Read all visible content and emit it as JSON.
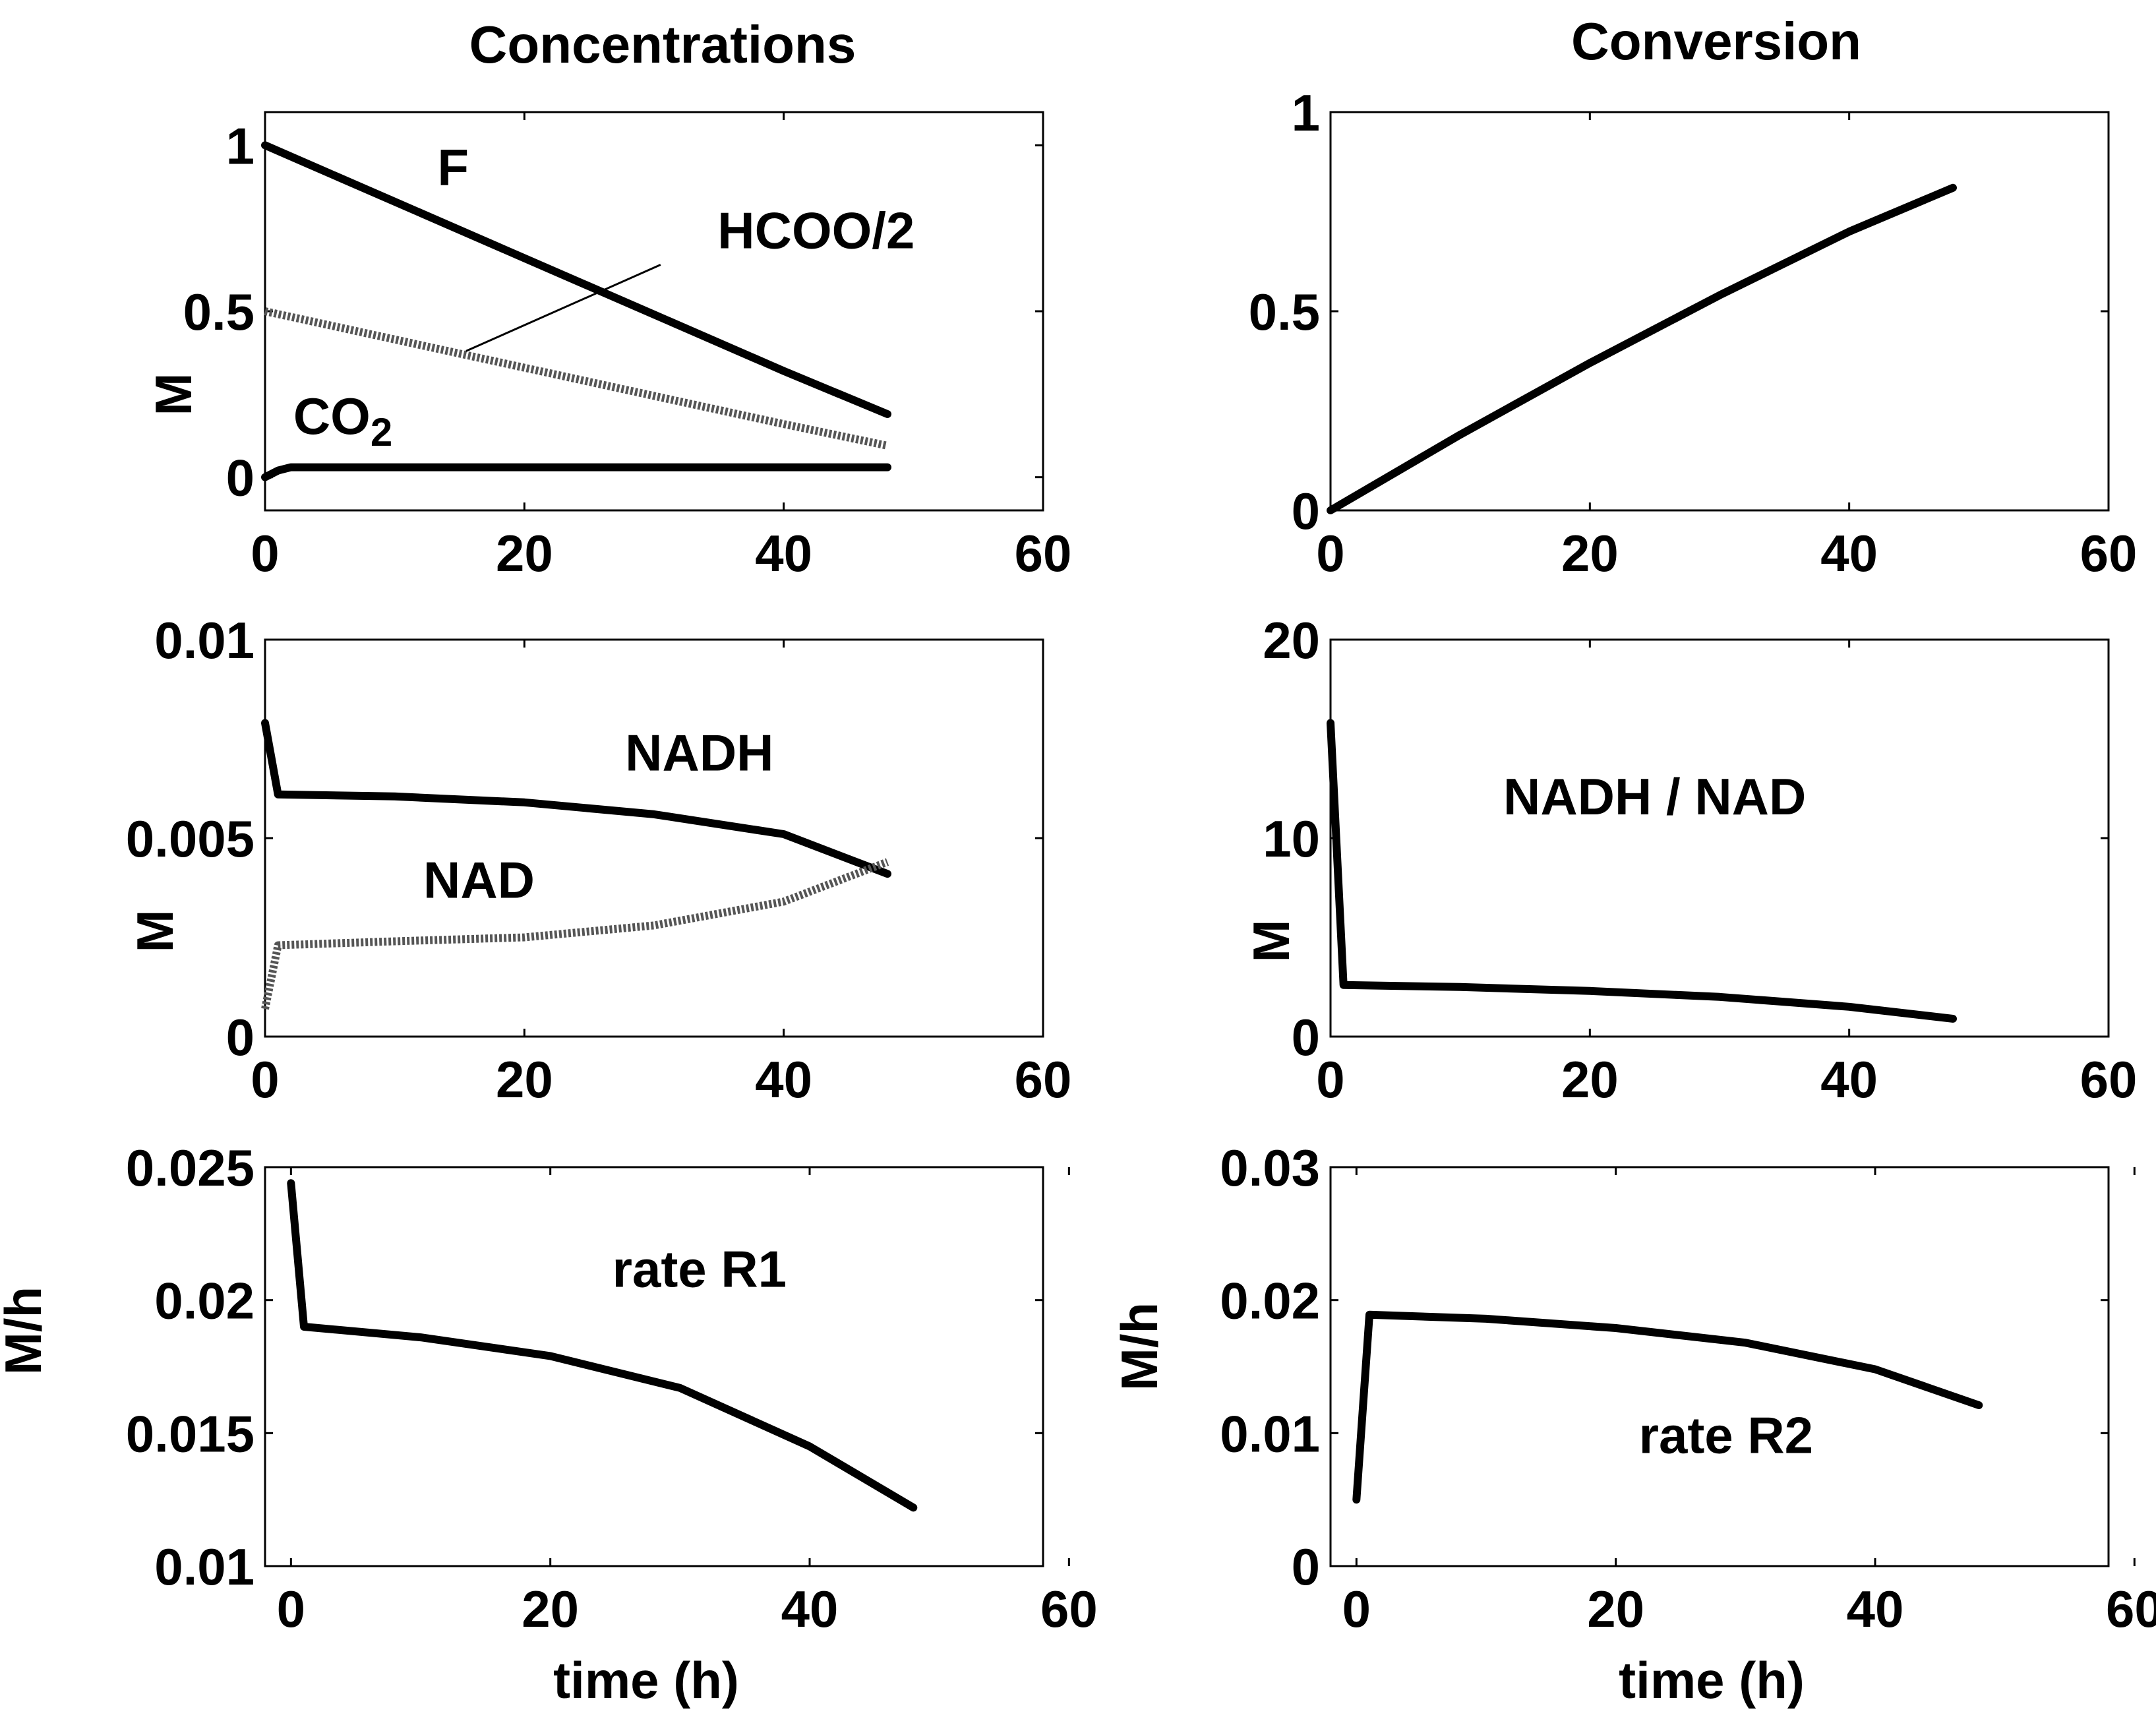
{
  "figure": {
    "col_titles": [
      "Concentrations",
      "Conversion"
    ],
    "xlabel": "time (h)"
  },
  "chart_data": [
    {
      "id": "p1",
      "type": "line",
      "title": "",
      "xlabel": "",
      "ylabel": "M",
      "xlim": [
        0,
        60
      ],
      "ylim": [
        -0.1,
        1.1
      ],
      "xticks": [
        0,
        20,
        40,
        60
      ],
      "yticks": [
        0,
        0.5,
        1
      ],
      "xtick_labels": [
        "0",
        "20",
        "40",
        "60"
      ],
      "ytick_labels": [
        "0",
        "0.5",
        "1"
      ],
      "series": [
        {
          "name": "F",
          "style": "solid",
          "x": [
            0,
            10,
            20,
            30,
            40,
            48
          ],
          "y": [
            1.0,
            0.83,
            0.66,
            0.49,
            0.32,
            0.19
          ]
        },
        {
          "name": "HCOO/2",
          "style": "dotted",
          "x": [
            0,
            10,
            20,
            30,
            40,
            48
          ],
          "y": [
            0.5,
            0.415,
            0.33,
            0.245,
            0.16,
            0.095
          ]
        },
        {
          "name": "CO2",
          "style": "solid",
          "x": [
            0,
            1,
            2,
            10,
            20,
            30,
            40,
            48
          ],
          "y": [
            0.0,
            0.02,
            0.03,
            0.03,
            0.03,
            0.03,
            0.03,
            0.03
          ]
        }
      ],
      "annotations": [
        {
          "text": "F",
          "x": 14.5,
          "y": 0.88
        },
        {
          "text": "HCOO/2",
          "x": 42.5,
          "y": 0.69
        },
        {
          "text": "CO",
          "sub": "2",
          "x": 6,
          "y": 0.13
        }
      ],
      "leader": {
        "x1": 15.5,
        "y1": 0.38,
        "x2": 30.5,
        "y2": 0.64
      }
    },
    {
      "id": "p2",
      "type": "line",
      "title": "",
      "xlabel": "",
      "ylabel": "",
      "xlim": [
        0,
        60
      ],
      "ylim": [
        0,
        1
      ],
      "xticks": [
        0,
        20,
        40,
        60
      ],
      "yticks": [
        0,
        0.5,
        1
      ],
      "xtick_labels": [
        "0",
        "20",
        "40",
        "60"
      ],
      "ytick_labels": [
        "0",
        "0.5",
        "1"
      ],
      "series": [
        {
          "name": "Conversion",
          "style": "solid",
          "x": [
            0,
            10,
            20,
            30,
            40,
            48
          ],
          "y": [
            0.0,
            0.19,
            0.37,
            0.54,
            0.7,
            0.81
          ]
        }
      ],
      "annotations": []
    },
    {
      "id": "p3",
      "type": "line",
      "title": "",
      "xlabel": "",
      "ylabel": "M",
      "xlim": [
        0,
        60
      ],
      "ylim": [
        0,
        0.01
      ],
      "xticks": [
        0,
        20,
        40,
        60
      ],
      "yticks": [
        0,
        0.005,
        0.01
      ],
      "xtick_labels": [
        "0",
        "20",
        "40",
        "60"
      ],
      "ytick_labels": [
        "0",
        "0.005",
        "0.01"
      ],
      "series": [
        {
          "name": "NADH",
          "style": "solid",
          "x": [
            0,
            1,
            10,
            20,
            30,
            40,
            48
          ],
          "y": [
            0.0079,
            0.0061,
            0.00605,
            0.0059,
            0.0056,
            0.0051,
            0.0041
          ]
        },
        {
          "name": "NAD",
          "style": "dotted",
          "x": [
            0,
            1,
            10,
            20,
            30,
            40,
            48
          ],
          "y": [
            0.0007,
            0.0023,
            0.0024,
            0.0025,
            0.0028,
            0.0034,
            0.0044
          ]
        }
      ],
      "annotations": [
        {
          "text": "NADH",
          "x": 33.5,
          "y": 0.0067
        },
        {
          "text": "NAD",
          "x": 16.5,
          "y": 0.0035
        }
      ]
    },
    {
      "id": "p4",
      "type": "line",
      "title": "",
      "xlabel": "",
      "ylabel": "M",
      "xlim": [
        0,
        60
      ],
      "ylim": [
        0,
        20
      ],
      "xticks": [
        0,
        20,
        40,
        60
      ],
      "yticks": [
        0,
        10,
        20
      ],
      "xtick_labels": [
        "0",
        "20",
        "40",
        "60"
      ],
      "ytick_labels": [
        "0",
        "10",
        "20"
      ],
      "series": [
        {
          "name": "NADH / NAD",
          "style": "solid",
          "x": [
            0,
            1,
            10,
            20,
            30,
            40,
            48
          ],
          "y": [
            15.8,
            2.6,
            2.5,
            2.3,
            2.0,
            1.5,
            0.9
          ]
        }
      ],
      "annotations": [
        {
          "text": "NADH / NAD",
          "x": 25,
          "y": 11.2
        }
      ]
    },
    {
      "id": "p5",
      "type": "line",
      "title": "",
      "xlabel": "time (h)",
      "ylabel": "M/h",
      "xlim": [
        -2,
        58
      ],
      "ylim": [
        0.01,
        0.025
      ],
      "xticks": [
        0,
        20,
        40,
        60
      ],
      "yticks": [
        0.01,
        0.015,
        0.02,
        0.025
      ],
      "xtick_labels": [
        "0",
        "20",
        "40",
        "60"
      ],
      "ytick_labels": [
        "0.01",
        "0.015",
        "0.02",
        "0.025"
      ],
      "series": [
        {
          "name": "rate R1",
          "style": "solid",
          "x": [
            0,
            1,
            10,
            20,
            30,
            40,
            48
          ],
          "y": [
            0.0244,
            0.019,
            0.0186,
            0.0179,
            0.0167,
            0.0145,
            0.0122
          ]
        }
      ],
      "annotations": [
        {
          "text": "rate R1",
          "x": 31.5,
          "y": 0.0205
        }
      ]
    },
    {
      "id": "p6",
      "type": "line",
      "title": "",
      "xlabel": "time (h)",
      "ylabel": "M/h",
      "xlim": [
        -2,
        58
      ],
      "ylim": [
        0,
        0.03
      ],
      "xticks": [
        0,
        20,
        40,
        60
      ],
      "yticks": [
        0,
        0.01,
        0.02,
        0.03
      ],
      "xtick_labels": [
        "0",
        "20",
        "40",
        "60"
      ],
      "ytick_labels": [
        "0",
        "0.01",
        "0.02",
        "0.03"
      ],
      "series": [
        {
          "name": "rate R2",
          "style": "solid",
          "x": [
            0,
            1,
            10,
            20,
            30,
            40,
            48
          ],
          "y": [
            0.005,
            0.0189,
            0.0186,
            0.0179,
            0.0168,
            0.0148,
            0.0121
          ]
        }
      ],
      "annotations": [
        {
          "text": "rate R2",
          "x": 28.5,
          "y": 0.0085
        }
      ]
    }
  ]
}
